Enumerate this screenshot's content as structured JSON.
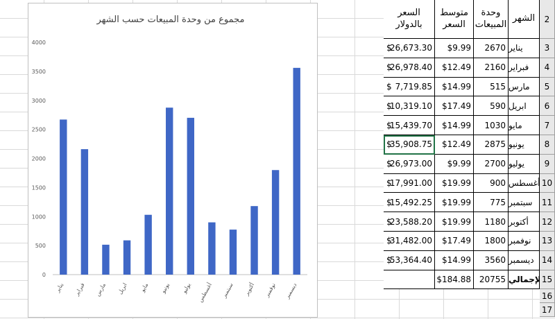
{
  "chart_data": {
    "type": "bar",
    "title": "مجموع من وحدة المبيعات حسب الشهر",
    "categories": [
      "يناير",
      "فبراير",
      "مارس",
      "ابريل",
      "مايو",
      "يونيو",
      "يوليو",
      "أغسطس",
      "سبتمبر",
      "أكتوبر",
      "نوفمبر",
      "ديسمبر"
    ],
    "values": [
      2670,
      2160,
      515,
      590,
      1030,
      2875,
      2700,
      900,
      775,
      1180,
      1800,
      3560
    ],
    "color": "#3f67c6",
    "ylim": [
      0,
      4000
    ],
    "yticks": [
      0,
      500,
      1000,
      1500,
      2000,
      2500,
      3000,
      3500,
      4000
    ],
    "grid": false
  },
  "table": {
    "headers": [
      "الشهر",
      "وحدة المبيعات",
      "متوسط السعر",
      "السعر بالدولار"
    ],
    "currency_symbol": "$",
    "rows": [
      [
        "يناير",
        2670,
        "$9.99",
        "26,673.30"
      ],
      [
        "فبراير",
        2160,
        "$12.49",
        "26,978.40"
      ],
      [
        "مارس",
        515,
        "$14.99",
        "7,719.85"
      ],
      [
        "ابريل",
        590,
        "$17.49",
        "10,319.10"
      ],
      [
        "مايو",
        1030,
        "$14.99",
        "15,439.70"
      ],
      [
        "يونيو",
        2875,
        "$12.49",
        "35,908.75"
      ],
      [
        "يوليو",
        2700,
        "$9.99",
        "26,973.00"
      ],
      [
        "أغسطس",
        900,
        "$19.99",
        "17,991.00"
      ],
      [
        "سبتمبر",
        775,
        "$19.99",
        "15,492.25"
      ],
      [
        "أكتوبر",
        1180,
        "$19.99",
        "23,588.20"
      ],
      [
        "نوفمبر",
        1800,
        "$17.49",
        "31,482.00"
      ],
      [
        "ديسمبر",
        3560,
        "$14.99",
        "53,364.40"
      ]
    ],
    "total": {
      "label": "الإجمالي",
      "units": 20755,
      "avg": "$184.88"
    },
    "row_numbers": [
      2,
      3,
      4,
      5,
      6,
      7,
      8,
      9,
      10,
      11,
      12,
      13,
      14,
      15,
      16,
      17
    ]
  }
}
